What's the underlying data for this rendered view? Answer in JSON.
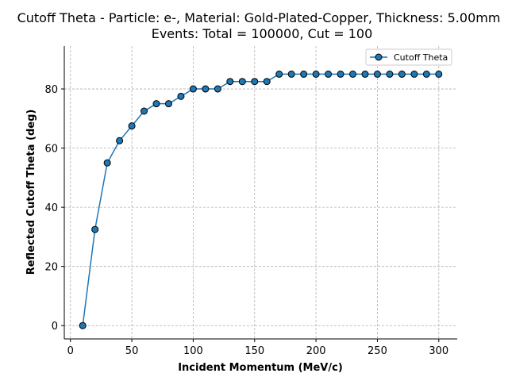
{
  "chart_data": {
    "type": "line",
    "title": "Cutoff Theta - Particle: e-, Material: Gold-Plated-Copper, Thickness: 5.00mm",
    "subtitle": "Events: Total = 100000, Cut = 100",
    "xlabel": "Incident Momentum (MeV/c)",
    "ylabel": "Reflected Cutoff Theta (deg)",
    "xlim": [
      -5,
      315
    ],
    "ylim": [
      -4.5,
      94.5
    ],
    "xticks": [
      0,
      50,
      100,
      150,
      200,
      250,
      300
    ],
    "yticks": [
      0,
      20,
      40,
      60,
      80
    ],
    "grid": true,
    "legend_position": "top-right",
    "x": [
      10,
      20,
      30,
      40,
      50,
      60,
      70,
      80,
      90,
      100,
      110,
      120,
      130,
      140,
      150,
      160,
      170,
      180,
      190,
      200,
      210,
      220,
      230,
      240,
      250,
      260,
      270,
      280,
      290,
      300
    ],
    "series": [
      {
        "name": "Cutoff Theta",
        "color": "#1f77b4",
        "marker": "circle",
        "values": [
          0,
          32.5,
          55,
          62.5,
          67.5,
          72.5,
          75,
          75,
          77.5,
          80,
          80,
          80,
          82.5,
          82.5,
          82.5,
          82.5,
          85,
          85,
          85,
          85,
          85,
          85,
          85,
          85,
          85,
          85,
          85,
          85,
          85,
          85
        ]
      }
    ]
  }
}
